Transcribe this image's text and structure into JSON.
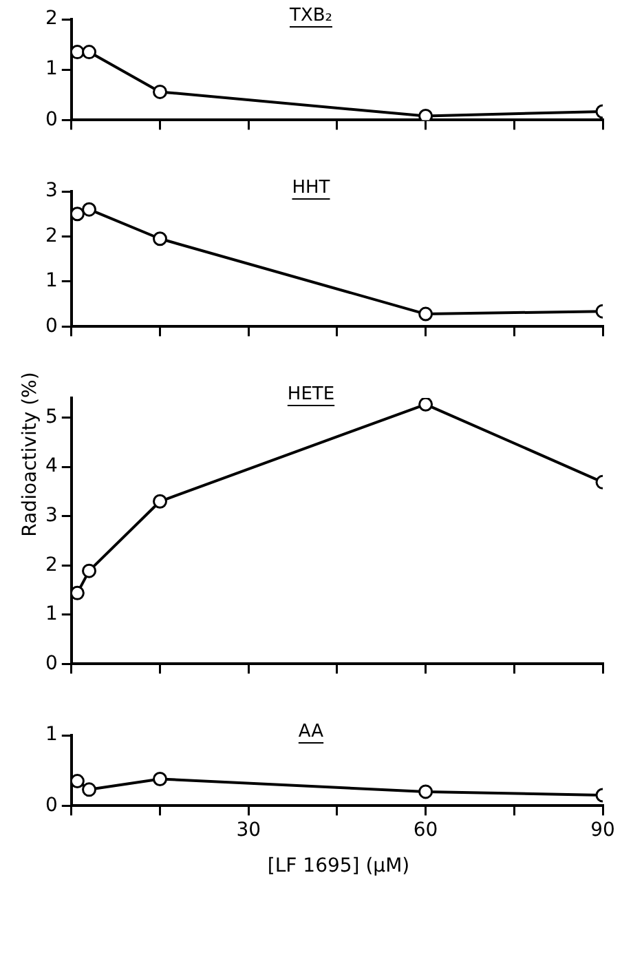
{
  "chart_data": [
    {
      "type": "line",
      "title": "TXB₂",
      "x": [
        1,
        3,
        15,
        60,
        90
      ],
      "xlim": [
        0,
        90
      ],
      "xticks": [
        0,
        {
          "value": 15,
          "label": null
        },
        {
          "value": 30,
          "label": null
        },
        {
          "value": 45,
          "label": null
        },
        {
          "value": 60,
          "label": null
        },
        {
          "value": 75,
          "label": null
        },
        {
          "value": 90,
          "label": null
        }
      ],
      "ylim": [
        0,
        2
      ],
      "yticks": [
        0,
        1,
        2
      ],
      "tick_labels": "y",
      "marker": "circle",
      "line_style": "solid",
      "series": [
        {
          "color": "#000000",
          "values": [
            1.35,
            1.35,
            0.56,
            0.08,
            0.17
          ]
        }
      ]
    },
    {
      "type": "line",
      "title": "HHT",
      "x": [
        1,
        3,
        15,
        60,
        90
      ],
      "xlim": [
        0,
        90
      ],
      "xticks": [
        0,
        {
          "value": 15,
          "label": null
        },
        {
          "value": 30,
          "label": null
        },
        {
          "value": 45,
          "label": null
        },
        {
          "value": 60,
          "label": null
        },
        {
          "value": 75,
          "label": null
        },
        {
          "value": 90,
          "label": null
        }
      ],
      "ylim": [
        0,
        3
      ],
      "yticks": [
        0,
        1,
        2,
        3
      ],
      "tick_labels": "y",
      "marker": "circle",
      "line_style": "solid",
      "series": [
        {
          "color": "#000000",
          "values": [
            2.5,
            2.6,
            1.95,
            0.28,
            0.34
          ]
        }
      ]
    },
    {
      "type": "line",
      "title": "HETE",
      "ylabel": "Radioactivity (%)",
      "x": [
        1,
        3,
        15,
        60,
        90
      ],
      "xlim": [
        0,
        90
      ],
      "xticks": [
        0,
        {
          "value": 15,
          "label": null
        },
        {
          "value": 30,
          "label": null
        },
        {
          "value": 45,
          "label": null
        },
        {
          "value": 60,
          "label": null
        },
        {
          "value": 75,
          "label": null
        },
        {
          "value": 90,
          "label": null
        }
      ],
      "ylim": [
        0,
        5.4
      ],
      "yticks": [
        0,
        1,
        2,
        3,
        4,
        5
      ],
      "tick_labels": "y",
      "marker": "circle",
      "line_style": "solid",
      "series": [
        {
          "color": "#000000",
          "values": [
            1.44,
            1.89,
            3.3,
            5.27,
            3.69
          ]
        }
      ]
    },
    {
      "type": "line",
      "title": "AA",
      "xlabel": "[LF 1695] (μM)",
      "x": [
        1,
        3,
        15,
        60,
        90
      ],
      "xlim": [
        0,
        90
      ],
      "xticks": [
        {
          "value": 0,
          "label": null
        },
        {
          "value": 15,
          "label": null
        },
        30,
        {
          "value": 45,
          "label": null
        },
        60,
        {
          "value": 75,
          "label": null
        },
        90
      ],
      "ylim": [
        0,
        1
      ],
      "yticks": [
        0,
        1
      ],
      "marker": "circle",
      "line_style": "solid",
      "series": [
        {
          "color": "#000000",
          "values": [
            0.35,
            0.23,
            0.38,
            0.2,
            0.15
          ]
        }
      ]
    }
  ]
}
